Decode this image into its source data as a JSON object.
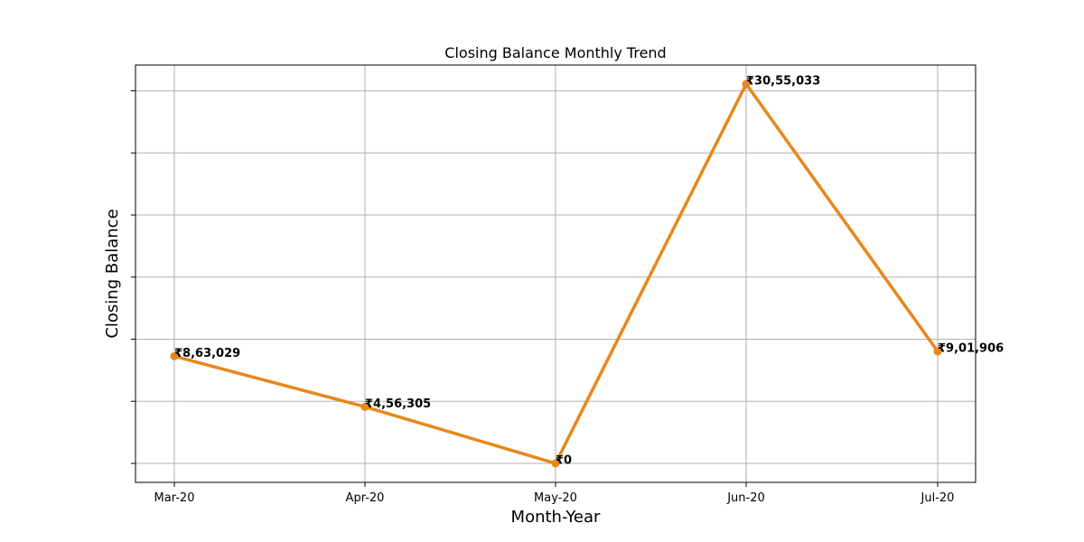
{
  "chart_data": {
    "type": "line",
    "title": "Closing Balance Monthly Trend",
    "xlabel": "Month-Year",
    "ylabel": "Closing Balance",
    "categories": [
      "Mar-20",
      "Apr-20",
      "May-20",
      "Jun-20",
      "Jul-20"
    ],
    "values": [
      863029,
      456305,
      0,
      3055033,
      901906
    ],
    "data_labels": [
      "₹8,63,029",
      "₹4,56,305",
      "₹0",
      "₹30,55,033",
      "₹9,01,906"
    ],
    "ylim": [
      -152752,
      3207785
    ],
    "y_ticks": [
      0,
      500000,
      1000000,
      1500000,
      2000000,
      2500000,
      3000000
    ],
    "y_tick_labels_visible": false,
    "grid": true,
    "line_color": "#e8871a"
  }
}
